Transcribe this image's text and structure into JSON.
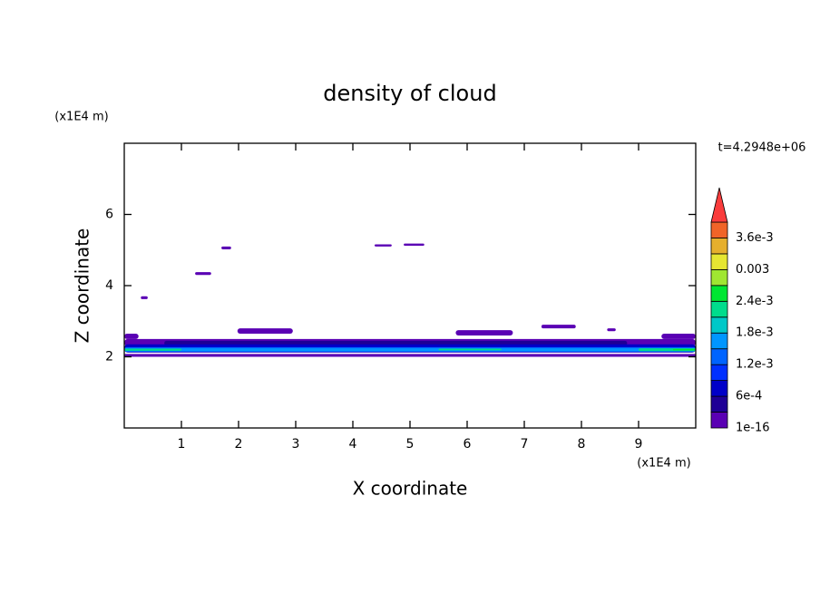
{
  "chart_data": {
    "type": "contour",
    "title": "density of cloud",
    "x_label": "X coordinate",
    "y_label": "Z coordinate",
    "x_unit": "(x1E4 m)",
    "y_unit": "(x1E4 m)",
    "time_label": "t=4.2948e+06",
    "xlim": [
      0,
      10
    ],
    "ylim": [
      0,
      8
    ],
    "xticks": [
      1,
      2,
      3,
      4,
      5,
      6,
      7,
      8,
      9
    ],
    "yticks": [
      2,
      4,
      6
    ],
    "colorbar": {
      "levels": [
        1e-16,
        0.0003,
        0.0006,
        0.0009,
        0.0012,
        0.0015,
        0.0018,
        0.0021,
        0.0024,
        0.0027,
        0.003,
        0.0033,
        0.0036,
        0.0039
      ],
      "colors": [
        "#5a00b4",
        "#1e0096",
        "#0000c8",
        "#0030ff",
        "#0064ff",
        "#0096ff",
        "#00c8c8",
        "#00dc8c",
        "#00e632",
        "#a0e632",
        "#e6e632",
        "#e6af2d",
        "#f06428",
        "#fa3c3c",
        "#f0a0a0"
      ],
      "ticks": [
        1e-16,
        {
          "value": 0.0006,
          "label": "6e-4"
        },
        {
          "value": 0.0012,
          "label": "1.2e-3"
        },
        {
          "value": 0.0018,
          "label": "1.8e-3"
        },
        {
          "value": 0.0024,
          "label": "2.4e-3"
        },
        0.003,
        {
          "value": 0.0036,
          "label": "3.6e-3"
        }
      ]
    },
    "patches": [
      {
        "x": [
          0.29,
          0.41
        ],
        "z": [
          3.62,
          3.7
        ],
        "value": 0.0001
      },
      {
        "x": [
          1.24,
          1.52
        ],
        "z": [
          4.3,
          4.38
        ],
        "value": 0.0001
      },
      {
        "x": [
          1.7,
          1.87
        ],
        "z": [
          5.02,
          5.1
        ],
        "value": 0.0001
      },
      {
        "x": [
          4.38,
          4.68
        ],
        "z": [
          5.1,
          5.16
        ],
        "value": 0.0001
      },
      {
        "x": [
          4.89,
          5.25
        ],
        "z": [
          5.12,
          5.18
        ],
        "value": 0.0001
      },
      {
        "x": [
          0.0,
          0.25
        ],
        "z": [
          2.5,
          2.65
        ],
        "value": 0.0001
      },
      {
        "x": [
          1.98,
          2.95
        ],
        "z": [
          2.65,
          2.8
        ],
        "value": 0.0001
      },
      {
        "x": [
          5.8,
          6.8
        ],
        "z": [
          2.6,
          2.75
        ],
        "value": 0.0001
      },
      {
        "x": [
          7.3,
          7.9
        ],
        "z": [
          2.8,
          2.9
        ],
        "value": 0.0001
      },
      {
        "x": [
          8.45,
          8.6
        ],
        "z": [
          2.72,
          2.8
        ],
        "value": 0.0001
      },
      {
        "x": [
          9.4,
          10.0
        ],
        "z": [
          2.5,
          2.65
        ],
        "value": 0.0001
      },
      {
        "x": [
          0.0,
          10.0
        ],
        "z": [
          2.0,
          2.08
        ],
        "value": 0.0001
      },
      {
        "x": [
          0.0,
          10.0
        ],
        "z": [
          2.3,
          2.5
        ],
        "value": 0.0001
      },
      {
        "x": [
          0.7,
          8.8
        ],
        "z": [
          2.32,
          2.45
        ],
        "value": 0.0004
      },
      {
        "x": [
          0.0,
          10.0
        ],
        "z": [
          2.12,
          2.35
        ],
        "value": 0.0008
      },
      {
        "x": [
          0.0,
          10.0
        ],
        "z": [
          2.14,
          2.27
        ],
        "value": 0.0013
      },
      {
        "x": [
          0.0,
          10.0
        ],
        "z": [
          2.16,
          2.24
        ],
        "value": 0.0017
      },
      {
        "x": [
          0.0,
          1.0
        ],
        "z": [
          2.17,
          2.23
        ],
        "value": 0.0022
      },
      {
        "x": [
          5.5,
          6.6
        ],
        "z": [
          2.18,
          2.23
        ],
        "value": 0.0022
      },
      {
        "x": [
          9.0,
          10.0
        ],
        "z": [
          2.16,
          2.24
        ],
        "value": 0.0023
      },
      {
        "x": [
          9.6,
          10.0
        ],
        "z": [
          2.18,
          2.22
        ],
        "value": 0.0026
      }
    ]
  }
}
